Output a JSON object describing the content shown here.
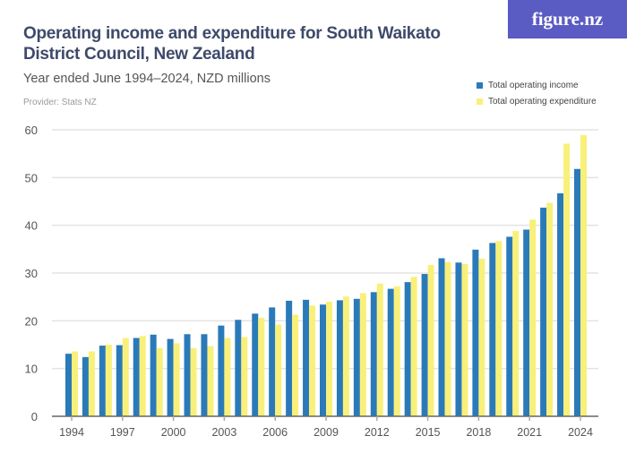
{
  "header": {
    "title": "Operating income and expenditure for South Waikato District Council, New Zealand",
    "subtitle": "Year ended June 1994–2024, NZD millions",
    "provider": "Provider: Stats NZ",
    "logo": "figure.nz"
  },
  "colors": {
    "income": "#2a7ab9",
    "expenditure": "#f9f07a"
  },
  "chart_data": {
    "type": "bar",
    "title": "Operating income and expenditure for South Waikato District Council, New Zealand",
    "subtitle": "Year ended June 1994–2024, NZD millions",
    "categories": [
      "1994",
      "1995",
      "1996",
      "1997",
      "1998",
      "1999",
      "2000",
      "2001",
      "2002",
      "2003",
      "2004",
      "2005",
      "2006",
      "2007",
      "2008",
      "2009",
      "2010",
      "2011",
      "2012",
      "2013",
      "2014",
      "2015",
      "2016",
      "2017",
      "2018",
      "2019",
      "2020",
      "2021",
      "2022",
      "2023",
      "2024"
    ],
    "x_tick_labels": [
      "1994",
      "1997",
      "2000",
      "2003",
      "2006",
      "2009",
      "2012",
      "2015",
      "2018",
      "2021",
      "2024"
    ],
    "y_tick_labels": [
      "0",
      "10",
      "20",
      "30",
      "40",
      "50",
      "60"
    ],
    "ylim": [
      0,
      60
    ],
    "grid": true,
    "legend": "top-right",
    "series": [
      {
        "name": "Total operating income",
        "values": [
          13.1,
          12.4,
          14.8,
          14.9,
          16.4,
          17.1,
          16.2,
          17.2,
          17.2,
          19.0,
          20.2,
          21.5,
          22.8,
          24.2,
          24.4,
          23.4,
          24.3,
          24.6,
          26.0,
          26.7,
          28.1,
          29.8,
          33.1,
          32.2,
          34.9,
          36.3,
          37.6,
          39.1,
          43.7,
          46.7,
          51.8
        ]
      },
      {
        "name": "Total operating expenditure",
        "values": [
          13.6,
          13.6,
          15.0,
          16.4,
          16.8,
          14.3,
          15.3,
          14.3,
          14.7,
          16.4,
          16.6,
          20.6,
          19.2,
          21.3,
          23.2,
          24.0,
          25.1,
          25.8,
          27.8,
          27.2,
          29.2,
          31.7,
          32.3,
          31.9,
          33.0,
          36.7,
          38.8,
          41.2,
          44.7,
          57.1,
          58.9
        ]
      }
    ]
  }
}
